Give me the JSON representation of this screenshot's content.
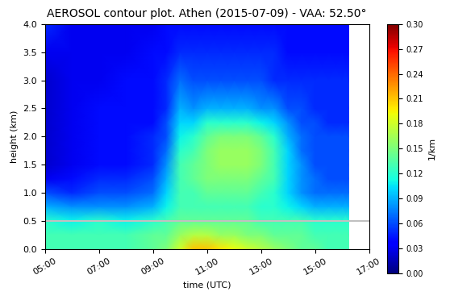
{
  "chart_data": {
    "type": "heatmap",
    "title": "AEROSOL contour plot. Athen (2015-07-09) - VAA: 52.50°",
    "x_label": "time (UTC)",
    "y_label": "height (km)",
    "x": [
      5,
      6,
      7,
      8,
      9,
      9.5,
      10,
      10.5,
      11,
      11.5,
      12,
      12.5,
      13,
      13.5,
      14,
      14.5,
      15,
      15.5,
      16,
      16.25
    ],
    "y": [
      0,
      0.25,
      0.5,
      0.75,
      1,
      1.25,
      1.5,
      1.75,
      2,
      2.25,
      2.5,
      3,
      3.5,
      4
    ],
    "cells": [
      [
        0.13,
        0.13,
        0.13,
        0.13,
        0.14,
        0.15,
        0.18,
        0.21,
        0.21,
        0.2,
        0.19,
        0.18,
        0.17,
        0.16,
        0.15,
        0.14,
        0.14,
        0.13,
        0.13,
        0.13
      ],
      [
        0.13,
        0.13,
        0.13,
        0.13,
        0.14,
        0.14,
        0.16,
        0.17,
        0.17,
        0.16,
        0.16,
        0.15,
        0.15,
        0.14,
        0.14,
        0.14,
        0.13,
        0.13,
        0.13,
        0.13
      ],
      [
        0.12,
        0.11,
        0.12,
        0.11,
        0.12,
        0.13,
        0.14,
        0.14,
        0.14,
        0.14,
        0.14,
        0.14,
        0.13,
        0.13,
        0.13,
        0.13,
        0.12,
        0.12,
        0.12,
        0.12
      ],
      [
        0.09,
        0.08,
        0.08,
        0.08,
        0.09,
        0.11,
        0.13,
        0.13,
        0.13,
        0.13,
        0.13,
        0.13,
        0.12,
        0.12,
        0.11,
        0.1,
        0.09,
        0.09,
        0.09,
        0.09
      ],
      [
        0.06,
        0.05,
        0.06,
        0.06,
        0.07,
        0.1,
        0.13,
        0.13,
        0.14,
        0.14,
        0.14,
        0.14,
        0.13,
        0.12,
        0.1,
        0.08,
        0.07,
        0.07,
        0.07,
        0.07
      ],
      [
        0.03,
        0.04,
        0.05,
        0.05,
        0.06,
        0.09,
        0.13,
        0.14,
        0.15,
        0.15,
        0.15,
        0.15,
        0.14,
        0.13,
        0.1,
        0.08,
        0.07,
        0.06,
        0.06,
        0.06
      ],
      [
        0.02,
        0.03,
        0.04,
        0.04,
        0.05,
        0.08,
        0.13,
        0.14,
        0.15,
        0.16,
        0.16,
        0.16,
        0.15,
        0.13,
        0.1,
        0.08,
        0.06,
        0.06,
        0.06,
        0.06
      ],
      [
        0.02,
        0.03,
        0.04,
        0.04,
        0.05,
        0.07,
        0.12,
        0.13,
        0.15,
        0.16,
        0.16,
        0.16,
        0.15,
        0.13,
        0.1,
        0.07,
        0.06,
        0.06,
        0.06,
        0.06
      ],
      [
        0.02,
        0.03,
        0.04,
        0.04,
        0.05,
        0.06,
        0.11,
        0.12,
        0.14,
        0.15,
        0.15,
        0.15,
        0.14,
        0.12,
        0.09,
        0.07,
        0.06,
        0.06,
        0.06,
        0.06
      ],
      [
        0.02,
        0.03,
        0.04,
        0.04,
        0.04,
        0.06,
        0.1,
        0.1,
        0.12,
        0.12,
        0.12,
        0.12,
        0.11,
        0.1,
        0.08,
        0.06,
        0.06,
        0.05,
        0.05,
        0.05
      ],
      [
        0.02,
        0.03,
        0.04,
        0.04,
        0.04,
        0.05,
        0.09,
        0.08,
        0.09,
        0.09,
        0.09,
        0.09,
        0.08,
        0.08,
        0.06,
        0.06,
        0.05,
        0.05,
        0.05,
        0.05
      ],
      [
        0.02,
        0.03,
        0.03,
        0.04,
        0.04,
        0.05,
        0.07,
        0.06,
        0.06,
        0.06,
        0.06,
        0.06,
        0.06,
        0.05,
        0.05,
        0.05,
        0.05,
        0.05,
        0.05,
        0.05
      ],
      [
        0.03,
        0.03,
        0.03,
        0.03,
        0.04,
        0.04,
        0.05,
        0.05,
        0.05,
        0.05,
        0.05,
        0.05,
        0.05,
        0.05,
        0.04,
        0.04,
        0.04,
        0.04,
        0.04,
        0.04
      ],
      [
        0.05,
        0.03,
        0.03,
        0.03,
        0.03,
        0.04,
        0.04,
        0.04,
        0.04,
        0.04,
        0.04,
        0.04,
        0.04,
        0.04,
        0.04,
        0.04,
        0.04,
        0.04,
        0.04,
        0.04
      ]
    ],
    "xlim": [
      5,
      17
    ],
    "xticks": [
      {
        "value": 5,
        "label": "05:00"
      },
      {
        "value": 7,
        "label": "07:00"
      },
      {
        "value": 9,
        "label": "09:00"
      },
      {
        "value": 11,
        "label": "11:00"
      },
      {
        "value": 13,
        "label": "13:00"
      },
      {
        "value": 15,
        "label": "15:00"
      },
      {
        "value": 17,
        "label": "17:00"
      }
    ],
    "ylim": [
      0,
      4
    ],
    "yticks": [
      {
        "value": 0,
        "label": "0.0"
      },
      0.5,
      {
        "value": 1,
        "label": "1.0"
      },
      1.5,
      {
        "value": 2,
        "label": "2.0"
      },
      2.5,
      {
        "value": 3,
        "label": "3.0"
      },
      3.5,
      {
        "value": 4,
        "label": "4.0"
      }
    ],
    "reference_line": 0.5,
    "colorbar": {
      "label": "1/km",
      "range": [
        0,
        0.3
      ],
      "ticks": [
        {
          "value": 0,
          "label": "0.00"
        },
        0.03,
        0.06,
        0.09,
        {
          "value": 0.12,
          "label": "0.12"
        },
        0.15,
        0.18,
        0.21,
        0.24,
        0.27,
        {
          "value": 0.3,
          "label": "0.30"
        }
      ]
    }
  }
}
